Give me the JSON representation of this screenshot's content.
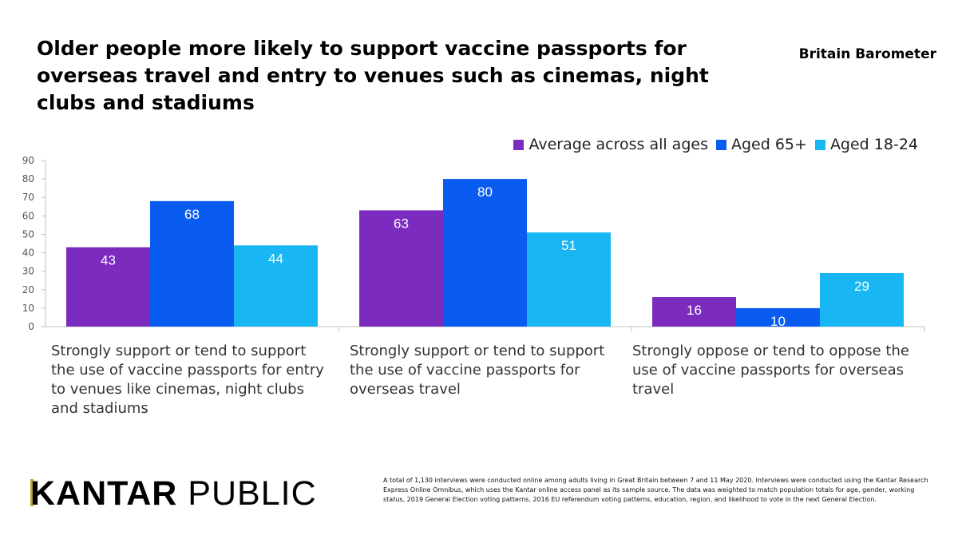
{
  "title": "Older people more likely to support vaccine passports for overseas travel and entry to venues such as cinemas, night clubs and stadiums",
  "brand": "Britain Barometer",
  "logo": {
    "first": "KANTAR",
    "second": "PUBLIC"
  },
  "footnote": "A total of 1,130 interviews were conducted online among adults living in Great Britain between 7 and 11 May 2020. Interviews were conducted using the Kantar Research Express Online Omnibus, which uses the Kantar online access panel as its sample source. The data was weighted to match population totals for age, gender, working status, 2019 General Election voting patterns, 2016 EU referendum voting patterns, education, region, and likelihood to vote in the next General Election.",
  "colors": {
    "purple": "#7b2cbf",
    "blue": "#0a5cf0",
    "cyan": "#18b6f2"
  },
  "chart_data": {
    "type": "bar",
    "categories": [
      "Strongly support or tend to support the use of vaccine passports for entry to venues like cinemas, night clubs and stadiums",
      "Strongly support or tend to support the use of vaccine passports for overseas travel",
      "Strongly oppose or tend to oppose the use of vaccine passports for overseas travel"
    ],
    "series": [
      {
        "name": "Average across all ages",
        "color": "#7b2cbf",
        "values": [
          43,
          63,
          16
        ]
      },
      {
        "name": "Aged 65+",
        "color": "#0a5cf0",
        "values": [
          68,
          80,
          10
        ]
      },
      {
        "name": "Aged 18-24",
        "color": "#18b6f2",
        "values": [
          44,
          51,
          29
        ]
      }
    ],
    "ylim": [
      0,
      90
    ],
    "yticks": [
      "0",
      "10",
      "20",
      "30",
      "40",
      "50",
      "60",
      "70",
      "80",
      "90"
    ],
    "legend_position": "top-right",
    "grid": false
  }
}
